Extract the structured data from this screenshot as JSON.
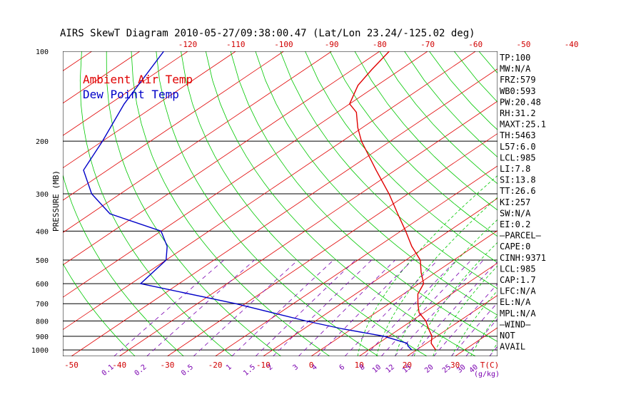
{
  "title": "AIRS SkewT Diagram 2010-05-27/09:38:00.47 (Lat/Lon 23.24/-125.02 deg)",
  "chart_data": {
    "type": "line",
    "title": "AIRS SkewT Diagram 2010-05-27/09:38:00.47 (Lat/Lon 23.24/-125.02 deg)",
    "ylabel": "PRESSURE (MB)",
    "xlabel_right": "T(C)",
    "mixing_ratio_axis_label": "(g/kg)",
    "top_temperature_ticks": [
      "-120",
      "-110",
      "-100",
      "-90",
      "-80",
      "-70",
      "-60",
      "-50",
      "-40"
    ],
    "bottom_temperature_ticks": [
      "-50",
      "-40",
      "-30",
      "-20",
      "-10",
      "0",
      "10",
      "20",
      "30"
    ],
    "pressure_ticks": [
      "100",
      "200",
      "300",
      "400",
      "500",
      "600",
      "700",
      "800",
      "900",
      "1000"
    ],
    "mixing_ratio_ticks": [
      "0.1",
      "0.2",
      "0.5",
      "1",
      "1.5",
      "2",
      "3",
      "4",
      "6",
      "8",
      "10",
      "12",
      "15",
      "20",
      "25",
      "30",
      "40"
    ],
    "legend": [
      {
        "label": "Ambient Air Temp",
        "color": "#e00000"
      },
      {
        "label": "Dew Point Temp",
        "color": "#0000c8"
      }
    ],
    "series": [
      {
        "name": "Ambient Air Temp",
        "color": "#e00000",
        "pressure": [
          1000,
          950,
          900,
          850,
          800,
          750,
          700,
          650,
          600,
          550,
          500,
          450,
          400,
          350,
          300,
          250,
          200,
          180,
          160,
          150,
          130,
          115,
          100
        ],
        "temperature": [
          24,
          21,
          19,
          16,
          13,
          9,
          6,
          3,
          1,
          -3,
          -7,
          -13,
          -19,
          -26,
          -34,
          -44,
          -56,
          -61,
          -66,
          -70,
          -74,
          -76,
          -78
        ]
      },
      {
        "name": "Dew Point Temp",
        "color": "#0000c8",
        "pressure": [
          1000,
          970,
          950,
          900,
          850,
          800,
          700,
          600,
          500,
          450,
          400,
          350,
          300,
          250,
          200,
          150,
          100
        ],
        "temperature": [
          19,
          17,
          16,
          9,
          -2,
          -12,
          -32,
          -58,
          -60,
          -64,
          -70,
          -86,
          -96,
          -105,
          -110,
          -117,
          -125
        ]
      }
    ]
  },
  "indices": [
    "TP:100",
    "MW:N/A",
    "FRZ:579",
    "WB0:593",
    "PW:20.48",
    "RH:31.2",
    "MAXT:25.1",
    "TH:5463",
    "L57:6.0",
    "LCL:985",
    "LI:7.8",
    "SI:13.8",
    "TT:26.6",
    "KI:257",
    "SW:N/A",
    "EI:0.2",
    "–PARCEL–",
    "CAPE:0",
    "CINH:9371",
    "LCL:985",
    "CAP:1.7",
    "LFC:N/A",
    "EL:N/A",
    "MPL:N/A",
    "–WIND–",
    "NOT",
    "AVAIL"
  ],
  "colors": {
    "isotherm": "#e00000",
    "dry_adiabat": "#00c800",
    "moist_adiabat": "#00c800",
    "mixing_ratio": "#7a00b0",
    "air_temp": "#e00000",
    "dew_point": "#0000c8",
    "isobar": "#000000"
  }
}
